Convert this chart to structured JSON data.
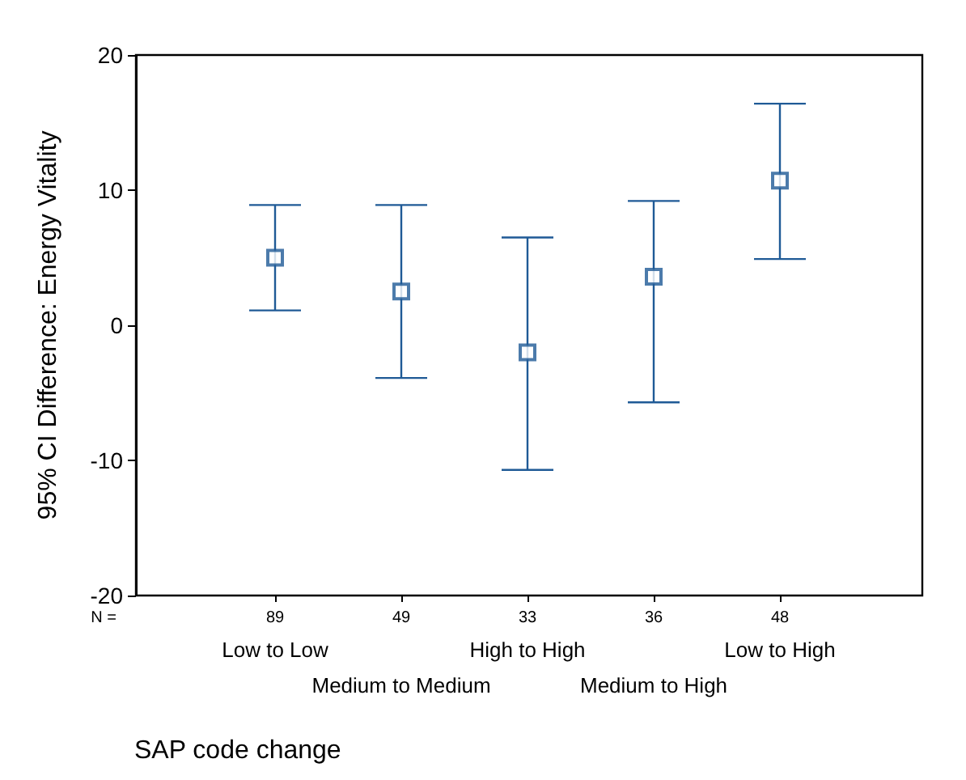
{
  "chart_data": {
    "type": "scatter",
    "categories": [
      "Low to Low",
      "Medium to Medium",
      "High to High",
      "Medium to High",
      "Low to High"
    ],
    "values": [
      5.0,
      2.5,
      -2.0,
      3.6,
      10.7
    ],
    "errors": [
      [
        1.1,
        8.9
      ],
      [
        -3.9,
        8.9
      ],
      [
        -10.7,
        6.5
      ],
      [
        -5.7,
        9.2
      ],
      [
        4.9,
        16.4
      ]
    ],
    "color": "#1f5a96",
    "marker": "square",
    "ylim": [
      -20,
      20
    ],
    "yticks": [
      -20,
      -10,
      0,
      10,
      20
    ],
    "ylabel": "95% CI Difference: Energy Vitality",
    "xlabel": "SAP code change",
    "annotations": [
      "N =",
      "89",
      "49",
      "33",
      "36",
      "48"
    ],
    "grid": false
  }
}
